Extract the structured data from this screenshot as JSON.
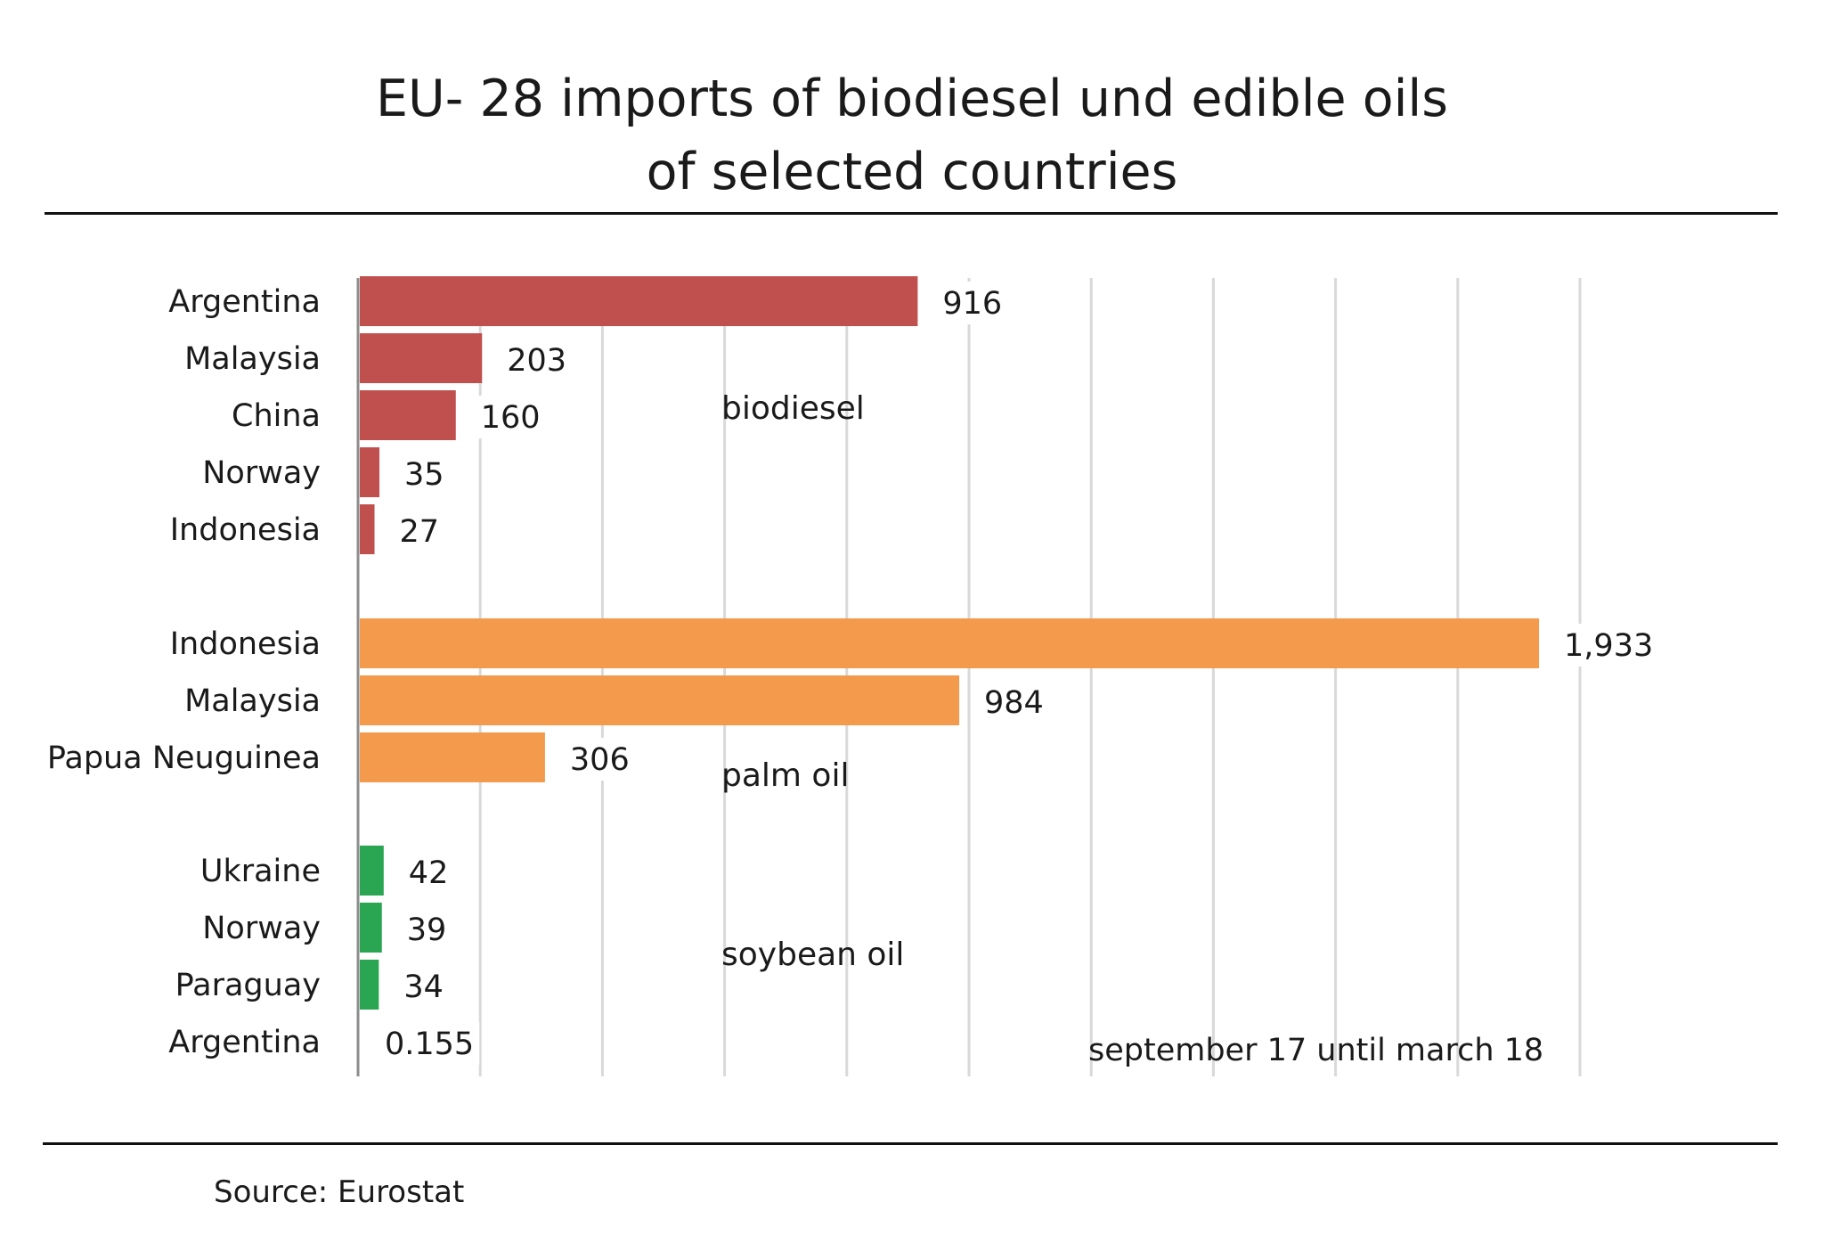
{
  "title_line1": "EU- 28 imports of biodiesel und edible oils",
  "title_line2": "of selected countries",
  "source": "Source: Eurostat",
  "chart_data": {
    "type": "bar",
    "orientation": "horizontal",
    "xlim": [
      0,
      2000
    ],
    "grid": true,
    "period_note": "september  17 until march 18",
    "colors": {
      "biodiesel": "#c0504d",
      "palm oil": "#f39a4c",
      "soybean oil": "#2aa552"
    },
    "groups": [
      {
        "name": "biodiesel",
        "categories": [
          "Argentina",
          "Malaysia",
          "China",
          "Norway",
          "Indonesia"
        ],
        "values": [
          916,
          203,
          160,
          35,
          27
        ],
        "labels": [
          "916",
          "203",
          "160",
          "35",
          "27"
        ]
      },
      {
        "name": "palm oil",
        "categories": [
          "Indonesia",
          "Malaysia",
          "Papua Neuguinea"
        ],
        "values": [
          1933,
          984,
          306
        ],
        "labels": [
          "1,933",
          "984",
          "306"
        ]
      },
      {
        "name": "soybean oil",
        "categories": [
          "Ukraine",
          "Norway",
          "Paraguay",
          "Argentina"
        ],
        "values": [
          42,
          39,
          34,
          0.155
        ],
        "labels": [
          "42",
          "39",
          "34",
          "0.155"
        ]
      }
    ]
  }
}
